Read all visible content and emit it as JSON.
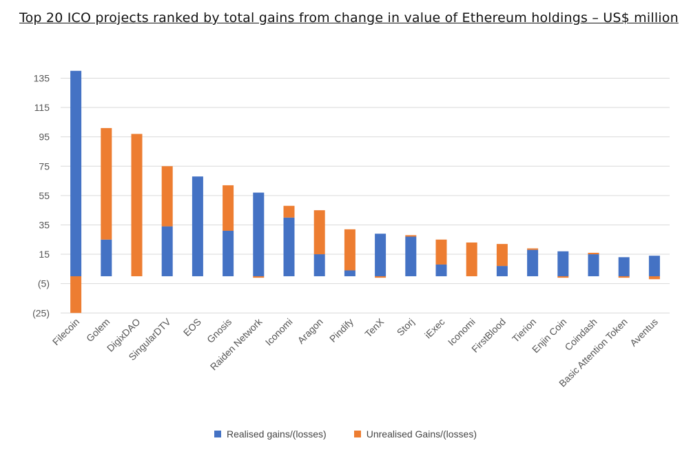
{
  "chart_data": {
    "type": "bar",
    "stacked": true,
    "title": "Top 20 ICO projects ranked by total gains from change in value of Ethereum holdings – US$ million",
    "xlabel": "",
    "ylabel": "",
    "ylim": [
      -25,
      145
    ],
    "yticks": [
      135,
      115,
      95,
      75,
      55,
      35,
      15,
      -5,
      -25
    ],
    "ytick_labels": [
      "135",
      "115",
      "95",
      "75",
      "55",
      "35",
      "15",
      "(5)",
      "(25)"
    ],
    "grid": true,
    "legend_position": "bottom",
    "categories": [
      "Filecoin",
      "Golem",
      "DigixDAO",
      "SingularDTV",
      "EOS",
      "Gnosis",
      "Raiden Network",
      "Iconomi",
      "Aragon",
      "Pindify",
      "TenX",
      "Storj",
      "iExec",
      "Iconomi",
      "FirstBlood",
      "Tierion",
      "Enjin Coin",
      "Coindash",
      "Basic Attention Token",
      "Aventus"
    ],
    "series": [
      {
        "name": "Realised gains/(losses)",
        "color": "#4472C4",
        "values": [
          140,
          25,
          0,
          34,
          68,
          31,
          57,
          40,
          15,
          4,
          29,
          27,
          8,
          0,
          7,
          18,
          17,
          15,
          13,
          14
        ]
      },
      {
        "name": "Unrealised Gains/(losses)",
        "color": "#ED7D31",
        "values": [
          -25,
          76,
          97,
          41,
          0,
          31,
          -1,
          8,
          30,
          28,
          -1,
          1,
          17,
          23,
          15,
          1,
          -1,
          1,
          -1,
          -2
        ]
      }
    ]
  }
}
